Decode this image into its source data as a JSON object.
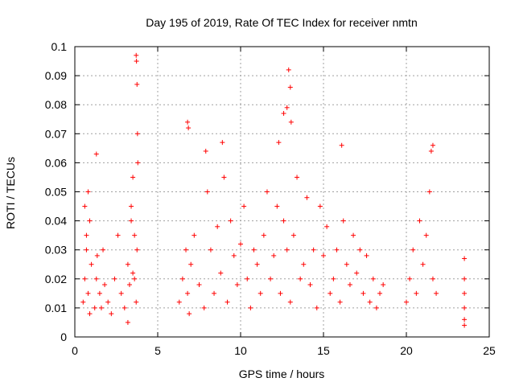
{
  "chart_data": {
    "type": "scatter",
    "title": "Day 195 of 2019, Rate Of TEC Index for receiver nmtn",
    "xlabel": "GPS time / hours",
    "ylabel": "ROTI / TECUs",
    "xlim": [
      0,
      25
    ],
    "ylim": [
      0,
      0.1
    ],
    "x_ticks": [
      0,
      5,
      10,
      15,
      20,
      25
    ],
    "y_ticks": [
      0,
      0.01,
      0.02,
      0.03,
      0.04,
      0.05,
      0.06,
      0.07,
      0.08,
      0.09,
      0.1
    ],
    "x_tick_labels": [
      "0",
      "5",
      "10",
      "15",
      "20",
      "25"
    ],
    "y_tick_labels": [
      "0",
      "0.01",
      "0.02",
      "0.03",
      "0.04",
      "0.05",
      "0.06",
      "0.07",
      "0.08",
      "0.09",
      "0.1"
    ],
    "grid": true,
    "marker": "+",
    "colors": {
      "series": "#ff0000",
      "grid": "#a0a0a0",
      "frame": "#000000"
    },
    "series": [
      {
        "x": [
          0.5,
          0.6,
          0.7,
          0.8,
          0.9,
          1.0,
          0.6,
          0.7,
          0.8,
          0.9,
          1.2,
          1.3,
          1.35,
          1.5,
          1.6,
          1.7,
          1.8,
          2.0,
          2.2,
          2.4,
          2.6,
          2.8,
          3.0,
          3.2,
          3.4,
          3.5,
          3.6,
          3.7,
          3.75,
          3.8,
          3.2,
          3.3,
          3.4,
          3.5,
          3.6,
          6.3,
          6.5,
          6.7,
          6.8,
          6.9,
          7.0,
          7.2,
          7.5,
          7.8,
          8.0,
          8.2,
          8.4,
          8.6,
          8.8,
          9.0,
          9.2,
          9.4,
          9.6,
          9.8,
          10.0,
          10.2,
          10.4,
          10.6,
          10.8,
          11.0,
          11.2,
          11.4,
          11.6,
          11.8,
          12.0,
          12.2,
          12.4,
          12.6,
          12.8,
          13.0,
          13.2,
          13.4,
          13.6,
          13.8,
          14.0,
          14.2,
          14.4,
          14.6,
          14.8,
          15.0,
          15.2,
          15.4,
          15.6,
          15.8,
          16.0,
          16.2,
          16.4,
          16.6,
          16.8,
          17.0,
          17.2,
          17.4,
          17.6,
          17.8,
          18.0,
          18.2,
          18.4,
          18.6,
          20.0,
          20.2,
          20.4,
          20.6,
          20.8,
          21.0,
          21.2,
          21.4,
          21.6,
          21.8,
          23.5,
          23.5,
          23.5,
          23.5,
          23.5,
          23.5,
          3.7,
          3.72,
          3.75,
          3.78,
          6.8,
          6.85,
          8.9,
          12.6,
          12.8,
          12.9,
          13.0,
          13.05,
          12.3,
          7.9,
          16.1,
          21.5,
          21.6,
          1.3
        ],
        "y": [
          0.012,
          0.02,
          0.03,
          0.015,
          0.008,
          0.025,
          0.045,
          0.035,
          0.05,
          0.04,
          0.01,
          0.02,
          0.028,
          0.015,
          0.01,
          0.03,
          0.018,
          0.012,
          0.008,
          0.02,
          0.035,
          0.015,
          0.01,
          0.025,
          0.04,
          0.055,
          0.02,
          0.012,
          0.03,
          0.06,
          0.005,
          0.018,
          0.045,
          0.022,
          0.035,
          0.012,
          0.02,
          0.03,
          0.015,
          0.008,
          0.025,
          0.035,
          0.018,
          0.01,
          0.05,
          0.03,
          0.015,
          0.038,
          0.022,
          0.055,
          0.012,
          0.04,
          0.028,
          0.018,
          0.032,
          0.045,
          0.02,
          0.01,
          0.03,
          0.025,
          0.015,
          0.035,
          0.05,
          0.02,
          0.028,
          0.045,
          0.015,
          0.04,
          0.03,
          0.012,
          0.035,
          0.055,
          0.02,
          0.025,
          0.048,
          0.018,
          0.03,
          0.01,
          0.045,
          0.028,
          0.038,
          0.015,
          0.02,
          0.03,
          0.012,
          0.04,
          0.025,
          0.018,
          0.035,
          0.022,
          0.03,
          0.015,
          0.028,
          0.012,
          0.02,
          0.01,
          0.015,
          0.018,
          0.012,
          0.02,
          0.03,
          0.015,
          0.04,
          0.025,
          0.035,
          0.05,
          0.02,
          0.015,
          0.027,
          0.02,
          0.015,
          0.01,
          0.006,
          0.004,
          0.097,
          0.095,
          0.087,
          0.07,
          0.074,
          0.072,
          0.067,
          0.077,
          0.079,
          0.092,
          0.086,
          0.074,
          0.067,
          0.064,
          0.066,
          0.064,
          0.066,
          0.063
        ]
      }
    ]
  }
}
